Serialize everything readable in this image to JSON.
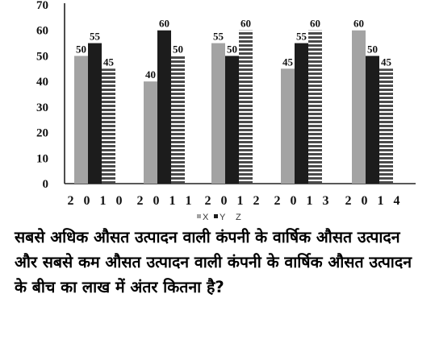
{
  "chart_data": {
    "type": "bar",
    "categories": [
      "2 0 1 0",
      "2 0 1 1",
      "2 0 1 2",
      "2 0 1 3",
      "2 0 1 4"
    ],
    "series": [
      {
        "name": "X",
        "values": [
          50,
          40,
          55,
          45,
          60
        ],
        "color": "#a3a3a3"
      },
      {
        "name": "Y",
        "values": [
          55,
          60,
          50,
          55,
          50
        ],
        "color": "#1c1c1c"
      },
      {
        "name": "Z",
        "values": [
          45,
          50,
          60,
          60,
          45
        ],
        "color": "striped"
      }
    ],
    "ylim": [
      0,
      70
    ],
    "yticks": [
      "0",
      "10",
      "20",
      "30",
      "40",
      "50",
      "60",
      "70"
    ],
    "legend": {
      "x": "X",
      "y": "Y",
      "z": "Z",
      "placement": "bottom"
    },
    "grid": false
  },
  "question": "सबसे अधिक औसत उत्पादन वाली कंपनी के वार्षिक औसत उत्पादन और सबसे कम औसत उत्पादन वाली कंपनी के वार्षिक औसत उत्पादन के बीच का लाख में अंतर कितना है?"
}
